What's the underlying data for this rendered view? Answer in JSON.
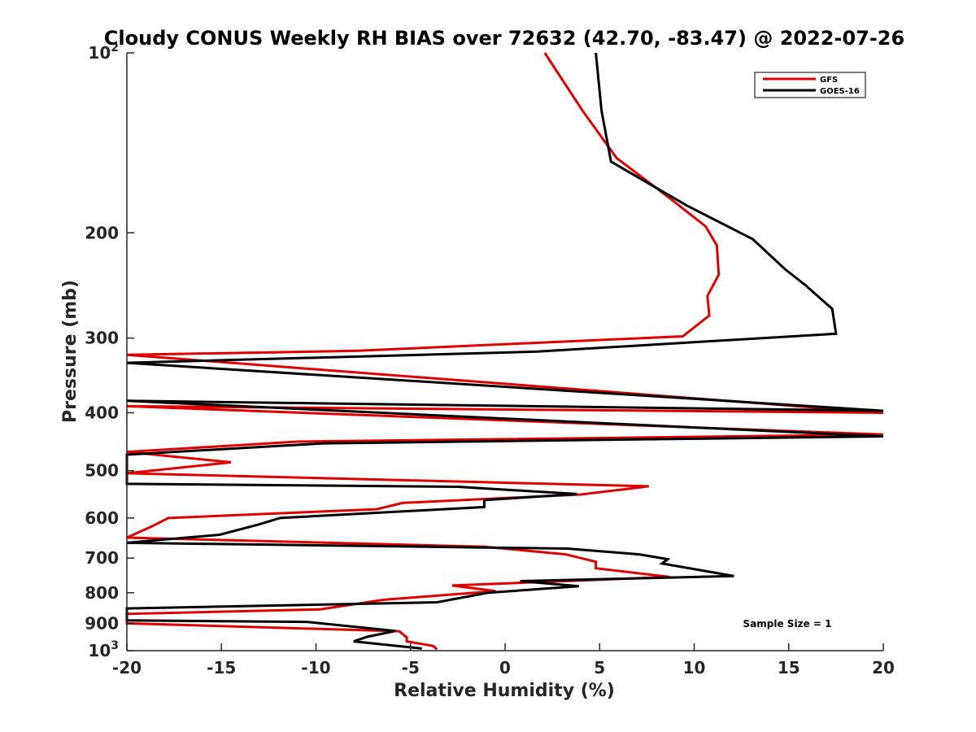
{
  "chart_data": {
    "type": "line",
    "title": "Cloudy CONUS Weekly RH BIAS over 72632 (42.70, -83.47) @ 2022-07-26",
    "xlabel": "Relative Humidity (%)",
    "ylabel": "Pressure (mb)",
    "xlim": [
      -20,
      20
    ],
    "ylim": [
      100,
      1000
    ],
    "yscale": "log",
    "y_reversed": true,
    "grid": false,
    "legend_position": "top-right",
    "xticks": [
      "-20",
      "-15",
      "-10",
      "-5",
      "0",
      "5",
      "10",
      "15",
      "20"
    ],
    "yticks": [
      {
        "value": 100,
        "base": "10",
        "exp": "2"
      },
      {
        "value": 200,
        "label": "200"
      },
      {
        "value": 300,
        "label": "300"
      },
      {
        "value": 400,
        "label": "400"
      },
      {
        "value": 500,
        "label": "500"
      },
      {
        "value": 600,
        "label": "600"
      },
      {
        "value": 700,
        "label": "700"
      },
      {
        "value": 800,
        "label": "800"
      },
      {
        "value": 900,
        "label": "900"
      },
      {
        "value": 1000,
        "base": "10",
        "exp": "3"
      }
    ],
    "annotation": "Sample Size = 1",
    "series": [
      {
        "name": "GFS",
        "color": "#e00000",
        "points": [
          {
            "x": 2.1,
            "y": 100
          },
          {
            "x": 4.1,
            "y": 125
          },
          {
            "x": 5.9,
            "y": 150
          },
          {
            "x": 8.7,
            "y": 175
          },
          {
            "x": 10.6,
            "y": 195
          },
          {
            "x": 11.2,
            "y": 210
          },
          {
            "x": 11.3,
            "y": 235
          },
          {
            "x": 10.7,
            "y": 255
          },
          {
            "x": 10.8,
            "y": 275
          },
          {
            "x": 9.4,
            "y": 298
          },
          {
            "x": -7.8,
            "y": 315
          },
          {
            "x": -20,
            "y": 320
          },
          {
            "x": 20,
            "y": 400
          },
          {
            "x": -20,
            "y": 390
          },
          {
            "x": 20,
            "y": 435
          },
          {
            "x": -11,
            "y": 447
          },
          {
            "x": -20,
            "y": 465
          },
          {
            "x": -14.5,
            "y": 484
          },
          {
            "x": -20,
            "y": 505
          },
          {
            "x": 7.6,
            "y": 531
          },
          {
            "x": 4,
            "y": 548
          },
          {
            "x": -5.4,
            "y": 566
          },
          {
            "x": -6.8,
            "y": 580
          },
          {
            "x": -17.8,
            "y": 600
          },
          {
            "x": -18.7,
            "y": 620
          },
          {
            "x": -20,
            "y": 647
          },
          {
            "x": -1.1,
            "y": 670
          },
          {
            "x": 3.2,
            "y": 690
          },
          {
            "x": 4.8,
            "y": 710
          },
          {
            "x": 4.8,
            "y": 728
          },
          {
            "x": 8.7,
            "y": 753
          },
          {
            "x": -2.8,
            "y": 778
          },
          {
            "x": -0.5,
            "y": 795
          },
          {
            "x": -6.4,
            "y": 822
          },
          {
            "x": -9.8,
            "y": 853
          },
          {
            "x": -20,
            "y": 868
          },
          {
            "x": -20,
            "y": 900
          },
          {
            "x": -5.6,
            "y": 928
          },
          {
            "x": -5.2,
            "y": 950
          },
          {
            "x": -5.2,
            "y": 965
          },
          {
            "x": -3.8,
            "y": 982
          },
          {
            "x": -3.6,
            "y": 995
          }
        ]
      },
      {
        "name": "GOES-16",
        "color": "#000000",
        "points": [
          {
            "x": 4.8,
            "y": 100
          },
          {
            "x": 5.1,
            "y": 125
          },
          {
            "x": 5.6,
            "y": 152
          },
          {
            "x": 9.6,
            "y": 180
          },
          {
            "x": 13.1,
            "y": 205
          },
          {
            "x": 14.8,
            "y": 230
          },
          {
            "x": 15.9,
            "y": 245
          },
          {
            "x": 17.3,
            "y": 268
          },
          {
            "x": 17.5,
            "y": 295
          },
          {
            "x": 1.7,
            "y": 316
          },
          {
            "x": -20,
            "y": 330
          },
          {
            "x": 20,
            "y": 397
          },
          {
            "x": -20,
            "y": 382
          },
          {
            "x": 20,
            "y": 438
          },
          {
            "x": -9.6,
            "y": 450
          },
          {
            "x": -20,
            "y": 470
          },
          {
            "x": -20,
            "y": 526
          },
          {
            "x": -2.5,
            "y": 532
          },
          {
            "x": 3.8,
            "y": 547
          },
          {
            "x": -1.1,
            "y": 560
          },
          {
            "x": -1.1,
            "y": 575
          },
          {
            "x": -11.9,
            "y": 600
          },
          {
            "x": -13.1,
            "y": 616
          },
          {
            "x": -15.1,
            "y": 640
          },
          {
            "x": -20,
            "y": 660
          },
          {
            "x": 3.3,
            "y": 675
          },
          {
            "x": 7.1,
            "y": 690
          },
          {
            "x": 8.6,
            "y": 703
          },
          {
            "x": 8.3,
            "y": 715
          },
          {
            "x": 12.1,
            "y": 750
          },
          {
            "x": 0.8,
            "y": 765
          },
          {
            "x": 3.9,
            "y": 780
          },
          {
            "x": -0.9,
            "y": 800
          },
          {
            "x": -3.6,
            "y": 830
          },
          {
            "x": -20,
            "y": 850
          },
          {
            "x": -20,
            "y": 890
          },
          {
            "x": -10.5,
            "y": 895
          },
          {
            "x": -5.8,
            "y": 927
          },
          {
            "x": -7.3,
            "y": 948
          },
          {
            "x": -8.0,
            "y": 965
          },
          {
            "x": -4.4,
            "y": 992
          }
        ]
      }
    ]
  }
}
